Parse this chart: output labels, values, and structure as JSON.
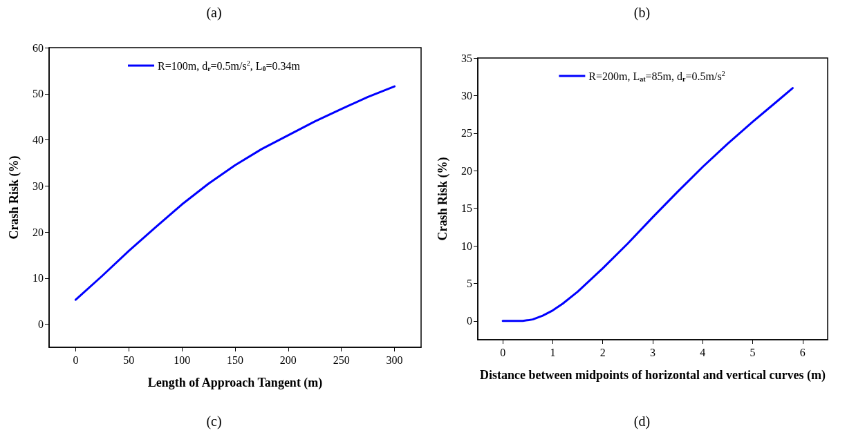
{
  "chart_data": [
    {
      "type": "line",
      "xlabel": "Length of Approach Tangent (m)",
      "ylabel": "Crash Risk (%)",
      "annotations": [
        "(a)",
        "(c)"
      ],
      "x": [
        0,
        25,
        50,
        75,
        100,
        125,
        150,
        175,
        200,
        225,
        250,
        275,
        300
      ],
      "series": [
        {
          "name": "R=100m, d$_{r}$=0.5m/s$^{2}$, L$_{0}$=0.34m",
          "color": "#0000ff",
          "values": [
            5.3,
            10.5,
            15.9,
            21,
            26,
            30.5,
            34.5,
            38,
            41,
            44,
            46.7,
            49.3,
            51.6
          ]
        }
      ],
      "xlim": [
        -25,
        325
      ],
      "xticks": [
        0,
        50,
        100,
        150,
        200,
        250,
        300
      ],
      "ylim": [
        -5,
        60
      ],
      "yticks": [
        0,
        10,
        20,
        30,
        40,
        50,
        60
      ],
      "grid": false,
      "legend": "top",
      "marker": "none",
      "line_style": "solid"
    },
    {
      "type": "line",
      "xlabel": "Distance between midpoints of horizontal and vertical curves (m)",
      "ylabel": "Crash Risk (%)",
      "annotations": [
        "(b)",
        "(d)"
      ],
      "x": [
        0,
        0.4,
        0.6,
        0.8,
        1.0,
        1.2,
        1.5,
        2,
        2.5,
        3,
        3.5,
        4,
        4.5,
        5,
        5.5,
        5.8
      ],
      "series": [
        {
          "name": "R=200m, L$_{at}$=85m, d$_{r}$=0.5m/s$^{2}$",
          "color": "#0000ff",
          "values": [
            0,
            0,
            0.2,
            0.7,
            1.4,
            2.3,
            3.9,
            7.0,
            10.3,
            13.8,
            17.2,
            20.5,
            23.6,
            26.5,
            29.3,
            31.0
          ]
        }
      ],
      "xlim": [
        -0.5,
        6.5
      ],
      "xticks": [
        0,
        1,
        2,
        3,
        4,
        5,
        6
      ],
      "ylim": [
        -2.5,
        35
      ],
      "yticks": [
        0,
        5,
        10,
        15,
        20,
        25,
        30,
        35
      ],
      "grid": false,
      "legend": "top",
      "marker": "none",
      "line_style": "solid"
    }
  ]
}
